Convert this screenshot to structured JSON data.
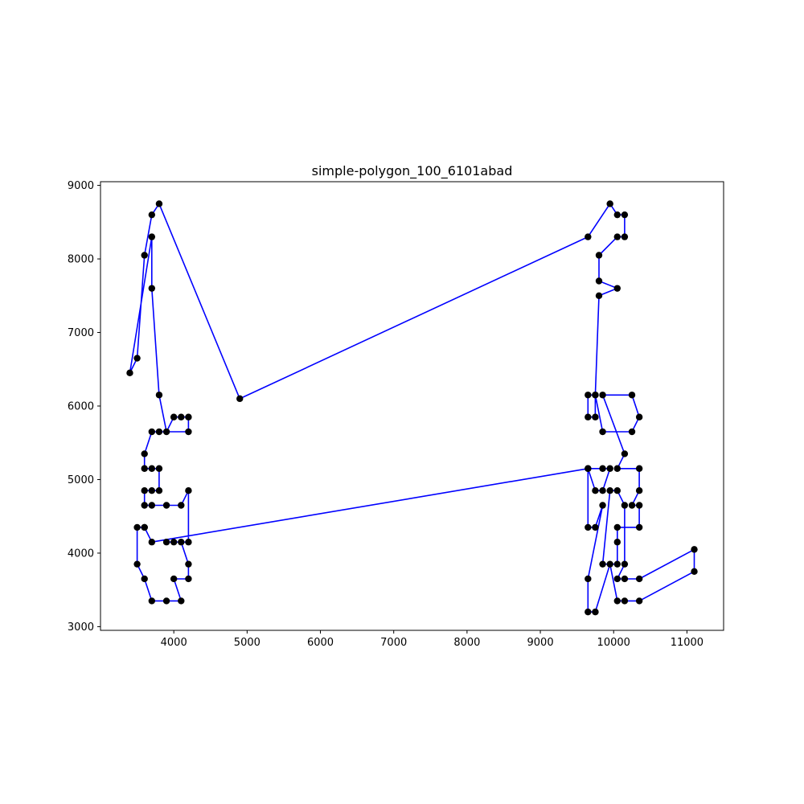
{
  "chart_data": {
    "type": "line",
    "title": "simple-polygon_100_6101abad",
    "xlabel": "",
    "ylabel": "",
    "xlim": [
      3000,
      11500
    ],
    "ylim": [
      2950,
      9050
    ],
    "xticks": [
      4000,
      5000,
      6000,
      7000,
      8000,
      9000,
      10000,
      11000
    ],
    "yticks": [
      3000,
      4000,
      5000,
      6000,
      7000,
      8000,
      9000
    ],
    "grid": false,
    "closed": true,
    "line_color": "#0000ff",
    "marker_color": "#000000",
    "series": [
      {
        "x": [
          4900,
          9650,
          9950,
          10050,
          10150,
          10150,
          10050,
          9800,
          9800,
          10050,
          9800,
          9750,
          9750,
          9650,
          9650,
          9750,
          9850,
          10250,
          10350,
          10250,
          9850,
          10150,
          10050,
          10350,
          10350,
          10250,
          10350,
          10350,
          10050,
          10050,
          10050,
          9850,
          9950,
          10050,
          10150,
          10150,
          10050,
          10150,
          10350,
          11100,
          11100,
          10350,
          10150,
          10050,
          9950,
          9750,
          9650,
          9650,
          9850,
          9750,
          9650,
          9650,
          9750,
          9850,
          9950,
          9850,
          9650,
          3700,
          3600,
          3600,
          3500,
          3500,
          3600,
          3700,
          3900,
          4100,
          4000,
          4200,
          4200,
          4100,
          4000,
          3900,
          4200,
          4200,
          4100,
          3900,
          3700,
          3600,
          3600,
          3700,
          3800,
          3800,
          3700,
          3600,
          3600,
          3700,
          3800,
          4200,
          4200,
          4100,
          4000,
          3900,
          3800,
          3700,
          3700,
          3400,
          3500,
          3600,
          3700,
          3800
        ],
        "y": [
          6100,
          8300,
          8750,
          8600,
          8600,
          8300,
          8300,
          8050,
          7700,
          7600,
          7500,
          6150,
          5850,
          5850,
          6150,
          6150,
          5650,
          5650,
          5850,
          6150,
          6150,
          5350,
          5150,
          5150,
          4850,
          4650,
          4650,
          4350,
          4350,
          4150,
          3850,
          3850,
          4850,
          4850,
          4650,
          3850,
          3650,
          3650,
          3650,
          4050,
          3750,
          3350,
          3350,
          3350,
          3850,
          3200,
          3200,
          3650,
          4650,
          4350,
          4350,
          5150,
          4850,
          4850,
          5150,
          5150,
          5150,
          4150,
          4350,
          4350,
          4350,
          3850,
          3650,
          3350,
          3350,
          3350,
          3650,
          3650,
          3850,
          4150,
          4150,
          4150,
          4150,
          4850,
          4650,
          4650,
          4650,
          4650,
          4850,
          4850,
          4850,
          5150,
          5150,
          5150,
          5350,
          5650,
          5650,
          5650,
          5850,
          5850,
          5850,
          5650,
          6150,
          7600,
          8300,
          6450,
          6650,
          8050,
          8600,
          8750
        ]
      }
    ]
  }
}
